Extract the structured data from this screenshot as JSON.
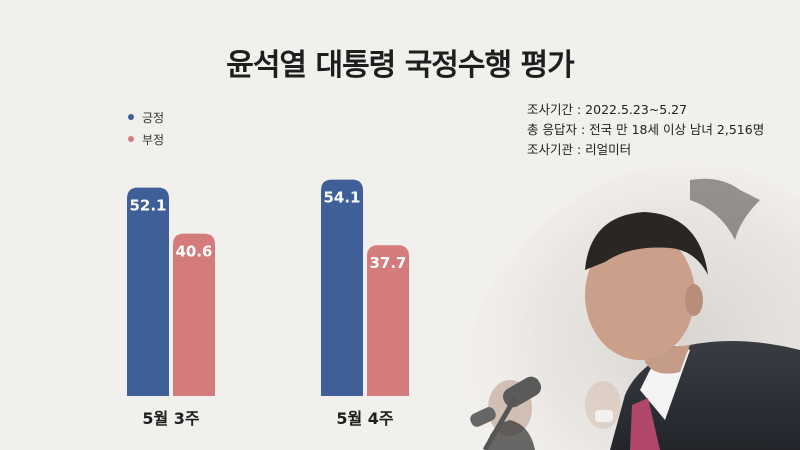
{
  "title": "윤석열 대통령 국정수행 평가",
  "legend": [
    {
      "label": "긍정",
      "color": "#3f5f98"
    },
    {
      "label": "부정",
      "color": "#d47c7c"
    }
  ],
  "info": [
    "조사기간 : 2022.5.23~5.27",
    "총 응답자 : 전국 만 18세 이상 남녀 2,516명",
    "조사기관 : 리얼미터"
  ],
  "chart_data": {
    "type": "bar",
    "title": "윤석열 대통령 국정수행 평가",
    "categories": [
      "5월 3주",
      "5월 4주"
    ],
    "series": [
      {
        "name": "긍정",
        "color": "#3f5f98",
        "values": [
          52.1,
          54.1
        ]
      },
      {
        "name": "부정",
        "color": "#d47c7c",
        "values": [
          40.6,
          37.7
        ]
      }
    ],
    "ylim": [
      0,
      55
    ],
    "grid": false,
    "legend_position": "top-left"
  }
}
